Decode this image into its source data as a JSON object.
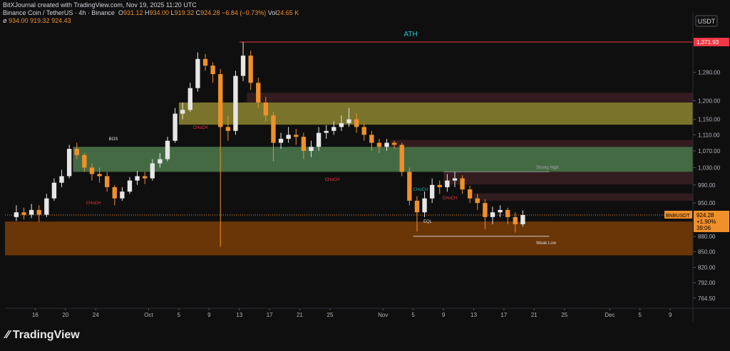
{
  "header": {
    "credit": "BitXJournal created with TradingView.com, Nov 19, 2025 11:20 UTC",
    "symbol": "Binance Coin / TetherUS · 4h · Binance",
    "ohlc": [
      [
        "O",
        "931.12"
      ],
      [
        "H",
        "934.00"
      ],
      [
        "L",
        "919.32"
      ],
      [
        "C",
        "924.28"
      ]
    ],
    "change": "−6.84 (−0.73%)",
    "volume": [
      "Vol",
      "24.65 K"
    ],
    "indicator": "ø",
    "indicator_values": "934.00 919.32 924.43"
  },
  "footer": {
    "brand": "TradingView"
  },
  "chart_data": {
    "type": "candlestick",
    "currency": "USDT",
    "symbol_tag": "BNBUSDT",
    "change_tag": "+1.90%",
    "countdown": "39:06",
    "x": [
      "2025-09-13",
      "2025-09-14",
      "2025-09-15",
      "2025-09-16",
      "2025-09-17",
      "2025-09-18",
      "2025-09-19",
      "2025-09-20",
      "2025-09-21",
      "2025-09-22",
      "2025-09-23",
      "2025-09-24",
      "2025-09-25",
      "2025-09-26",
      "2025-09-27",
      "2025-09-28",
      "2025-09-29",
      "2025-09-30",
      "2025-10-01",
      "2025-10-02",
      "2025-10-03",
      "2025-10-04",
      "2025-10-05",
      "2025-10-06",
      "2025-10-07",
      "2025-10-08",
      "2025-10-09",
      "2025-10-10",
      "2025-10-11",
      "2025-10-12",
      "2025-10-13",
      "2025-10-14",
      "2025-10-15",
      "2025-10-16",
      "2025-10-17",
      "2025-10-18",
      "2025-10-19",
      "2025-10-20",
      "2025-10-21",
      "2025-10-22",
      "2025-10-23",
      "2025-10-24",
      "2025-10-25",
      "2025-10-26",
      "2025-10-27",
      "2025-10-28",
      "2025-10-29",
      "2025-10-30",
      "2025-10-31",
      "2025-11-01",
      "2025-11-02",
      "2025-11-03",
      "2025-11-04",
      "2025-11-05",
      "2025-11-06",
      "2025-11-07",
      "2025-11-08",
      "2025-11-09",
      "2025-11-10",
      "2025-11-11",
      "2025-11-12",
      "2025-11-13",
      "2025-11-14",
      "2025-11-15",
      "2025-11-16",
      "2025-11-17",
      "2025-11-18",
      "2025-11-19"
    ],
    "open": [
      920,
      930,
      925,
      935,
      925,
      960,
      995,
      1010,
      1075,
      1060,
      1030,
      1015,
      1010,
      985,
      960,
      975,
      1000,
      1010,
      1005,
      1040,
      1050,
      1095,
      1165,
      1175,
      1235,
      1320,
      1300,
      1275,
      1130,
      1120,
      1270,
      1330,
      1250,
      1195,
      1160,
      1090,
      1100,
      1110,
      1105,
      1070,
      1080,
      1115,
      1120,
      1130,
      1140,
      1150,
      1130,
      1110,
      1090,
      1080,
      1090,
      1085,
      1020,
      955,
      930,
      960,
      990,
      985,
      1000,
      1005,
      980,
      960,
      950,
      920,
      930,
      935,
      920,
      905
    ],
    "high": [
      945,
      940,
      948,
      945,
      970,
      1005,
      1025,
      1085,
      1090,
      1065,
      1040,
      1030,
      1020,
      990,
      985,
      1008,
      1022,
      1020,
      1050,
      1065,
      1105,
      1180,
      1195,
      1250,
      1340,
      1335,
      1310,
      1290,
      1160,
      1285,
      1371.93,
      1345,
      1265,
      1210,
      1170,
      1115,
      1130,
      1125,
      1115,
      1095,
      1130,
      1135,
      1145,
      1160,
      1180,
      1165,
      1140,
      1120,
      1100,
      1100,
      1095,
      1090,
      1030,
      965,
      975,
      1005,
      1000,
      1015,
      1020,
      1012,
      988,
      970,
      958,
      942,
      945,
      940,
      930,
      934
    ],
    "low": [
      912,
      915,
      918,
      910,
      920,
      955,
      985,
      1005,
      1050,
      1020,
      1000,
      995,
      975,
      945,
      955,
      970,
      990,
      992,
      1000,
      1030,
      1045,
      1090,
      1150,
      1170,
      1225,
      1285,
      1250,
      860,
      1095,
      1110,
      1255,
      1230,
      1180,
      1145,
      1045,
      1075,
      1090,
      1085,
      1050,
      1055,
      1070,
      1100,
      1110,
      1120,
      1130,
      1115,
      1095,
      1070,
      1065,
      1070,
      1075,
      1010,
      945,
      890,
      920,
      950,
      970,
      975,
      985,
      970,
      950,
      935,
      895,
      905,
      920,
      905,
      888,
      900
    ],
    "close": [
      930,
      925,
      935,
      925,
      960,
      995,
      1010,
      1075,
      1060,
      1030,
      1015,
      1010,
      985,
      960,
      975,
      1000,
      1010,
      1005,
      1040,
      1050,
      1095,
      1165,
      1175,
      1235,
      1320,
      1300,
      1275,
      1130,
      1120,
      1270,
      1330,
      1250,
      1195,
      1160,
      1090,
      1100,
      1110,
      1105,
      1070,
      1080,
      1115,
      1120,
      1130,
      1140,
      1150,
      1130,
      1110,
      1090,
      1080,
      1090,
      1085,
      1020,
      955,
      930,
      960,
      990,
      985,
      1000,
      1005,
      980,
      960,
      950,
      920,
      930,
      935,
      920,
      905,
      924.28
    ],
    "up_color": "#e6e6e6",
    "down_color": "#f0902a",
    "xlim": [
      "2025-09-12",
      "2025-12-12"
    ],
    "xticks": [
      {
        "value": "2025-09-16",
        "label": "16"
      },
      {
        "value": "2025-09-20",
        "label": "20"
      },
      {
        "value": "2025-09-24",
        "label": "24"
      },
      {
        "value": "2025-10-01",
        "label": "Oct"
      },
      {
        "value": "2025-10-05",
        "label": "5"
      },
      {
        "value": "2025-10-09",
        "label": "9"
      },
      {
        "value": "2025-10-13",
        "label": "13"
      },
      {
        "value": "2025-10-17",
        "label": "17"
      },
      {
        "value": "2025-10-21",
        "label": "21"
      },
      {
        "value": "2025-10-25",
        "label": "25"
      },
      {
        "value": "2025-11-01",
        "label": "Nov"
      },
      {
        "value": "2025-11-05",
        "label": "5"
      },
      {
        "value": "2025-11-09",
        "label": "9"
      },
      {
        "value": "2025-11-13",
        "label": "13"
      },
      {
        "value": "2025-11-17",
        "label": "17"
      },
      {
        "value": "2025-11-21",
        "label": "21"
      },
      {
        "value": "2025-11-25",
        "label": "25"
      },
      {
        "value": "2025-12-01",
        "label": "Dec"
      },
      {
        "value": "2025-12-05",
        "label": "5"
      },
      {
        "value": "2025-12-09",
        "label": "9"
      }
    ],
    "log_scale": true,
    "ylim": [
      747,
      1469
    ],
    "yticks": [
      {
        "value": 1280,
        "label": "1,280.00"
      },
      {
        "value": 1200,
        "label": "1,200.00"
      },
      {
        "value": 1150,
        "label": "1,150.00"
      },
      {
        "value": 1110,
        "label": "1,110.00"
      },
      {
        "value": 1070,
        "label": "1,070.00"
      },
      {
        "value": 1030,
        "label": "1,030.00"
      },
      {
        "value": 990,
        "label": "990.00"
      },
      {
        "value": 950,
        "label": "950.00"
      },
      {
        "value": 880,
        "label": "880.00"
      },
      {
        "value": 850,
        "label": "850.00"
      },
      {
        "value": 820,
        "label": "820.00"
      },
      {
        "value": 792,
        "label": "792.00"
      },
      {
        "value": 764.5,
        "label": "764.50"
      }
    ],
    "zones": [
      {
        "from": "2025-09-12",
        "y0": 843,
        "y1": 910.6,
        "color": "#7a3d06"
      },
      {
        "from": "2025-09-21",
        "y0": 1020,
        "y1": 1080,
        "color": "#4d7a4d"
      },
      {
        "from": "2025-10-05",
        "y0": 1136,
        "y1": 1195,
        "color": "#8c8530"
      },
      {
        "from": "2025-10-14",
        "y0": 1195,
        "y1": 1222,
        "color": "#3a1f22"
      },
      {
        "from": "2025-11-02",
        "y0": 1080,
        "y1": 1097,
        "color": "#3a1f22"
      },
      {
        "from": "2025-11-09",
        "y0": 991,
        "y1": 1020,
        "color": "#3a1f22"
      },
      {
        "from": "2025-11-13",
        "y0": 955,
        "y1": 971,
        "color": "#3a1f22"
      }
    ],
    "ath_line": {
      "from": "2025-10-13",
      "value": 1371.93,
      "label": "1,371.93",
      "color": "#f23645"
    },
    "price_line": {
      "value": 924.28,
      "label": "924.28",
      "color": "#f0902a"
    },
    "weak_low": {
      "from": "2025-11-05",
      "to": "2025-11-23",
      "value": 880.5
    },
    "strong_high": {
      "from": "2025-11-09",
      "to": "2025-11-23",
      "value": 1020
    },
    "annotations": {
      "ath": "ATH",
      "bos": "BOS",
      "choch": "CHoCH",
      "strong_high": "Strong High",
      "weak_low": "Weak Low",
      "eql": "EQL"
    }
  }
}
